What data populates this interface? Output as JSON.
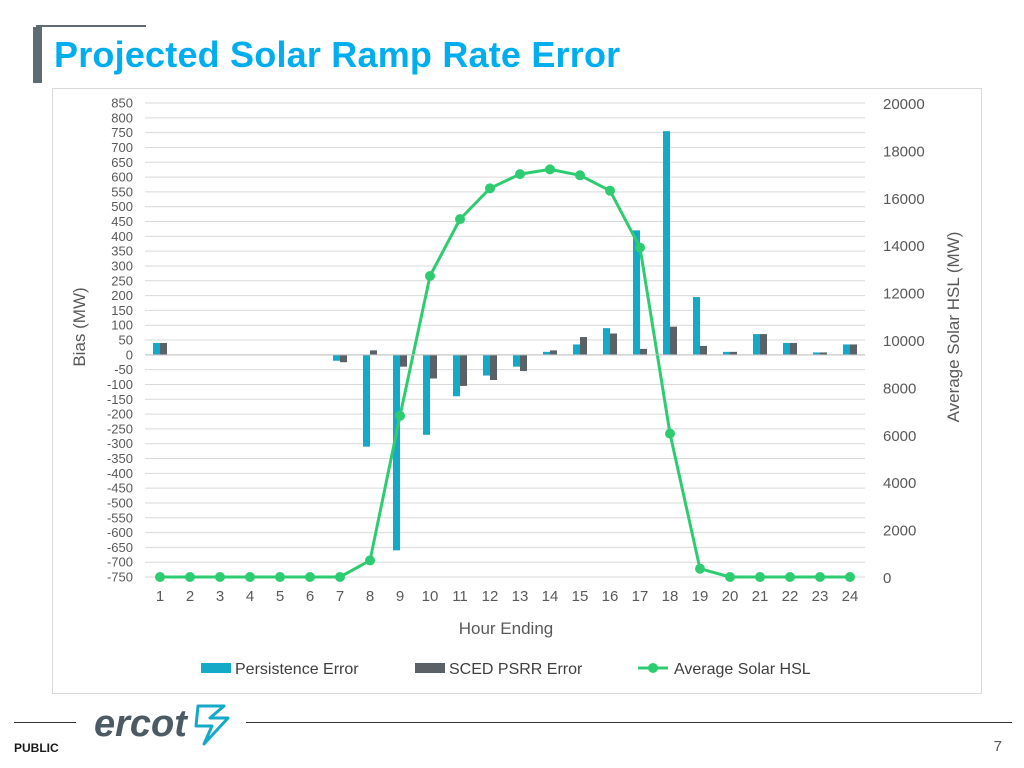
{
  "slide": {
    "title": "Projected Solar Ramp Rate Error",
    "footer_label": "PUBLIC",
    "page_number": "7",
    "logo_text": "ercot"
  },
  "colors": {
    "title": "#00aeef",
    "persistence": "#14a9c6",
    "sced": "#5a6268",
    "solar": "#2ecc71",
    "logo": "#4c5a63"
  },
  "chart_data": {
    "type": "bar",
    "title": "",
    "xlabel": "Hour Ending",
    "ylabel": "Bias (MW)",
    "y2label": "Average Solar HSL (MW)",
    "categories": [
      "1",
      "2",
      "3",
      "4",
      "5",
      "6",
      "7",
      "8",
      "9",
      "10",
      "11",
      "12",
      "13",
      "14",
      "15",
      "16",
      "17",
      "18",
      "19",
      "20",
      "21",
      "22",
      "23",
      "24"
    ],
    "ylim": [
      -750,
      850
    ],
    "yticks": [
      850,
      800,
      750,
      700,
      650,
      600,
      550,
      500,
      450,
      400,
      350,
      300,
      250,
      200,
      150,
      100,
      50,
      0,
      -50,
      -100,
      -150,
      -200,
      -250,
      -300,
      -350,
      -400,
      -450,
      -500,
      -550,
      -600,
      -650,
      -700,
      -750
    ],
    "y2lim": [
      0,
      20000
    ],
    "y2ticks": [
      0,
      2000,
      4000,
      6000,
      8000,
      10000,
      12000,
      14000,
      16000,
      18000,
      20000
    ],
    "legend_position": "bottom",
    "series": [
      {
        "name": "Persistence Error",
        "kind": "bar",
        "axis": "left",
        "values": [
          40,
          0,
          0,
          0,
          0,
          0,
          -20,
          -310,
          -660,
          -270,
          -140,
          -70,
          -40,
          10,
          35,
          90,
          420,
          755,
          195,
          10,
          70,
          40,
          8,
          35
        ]
      },
      {
        "name": "SCED PSRR Error",
        "kind": "bar",
        "axis": "left",
        "values": [
          40,
          0,
          0,
          0,
          0,
          0,
          -25,
          15,
          -40,
          -80,
          -105,
          -85,
          -55,
          15,
          60,
          72,
          20,
          95,
          30,
          10,
          70,
          40,
          8,
          35
        ]
      },
      {
        "name": "Average Solar HSL",
        "kind": "line",
        "axis": "right",
        "values": [
          0,
          0,
          0,
          0,
          0,
          0,
          0,
          700,
          6800,
          12700,
          15100,
          16400,
          17000,
          17200,
          16950,
          16300,
          13900,
          6050,
          350,
          0,
          0,
          0,
          0,
          0
        ]
      }
    ]
  }
}
